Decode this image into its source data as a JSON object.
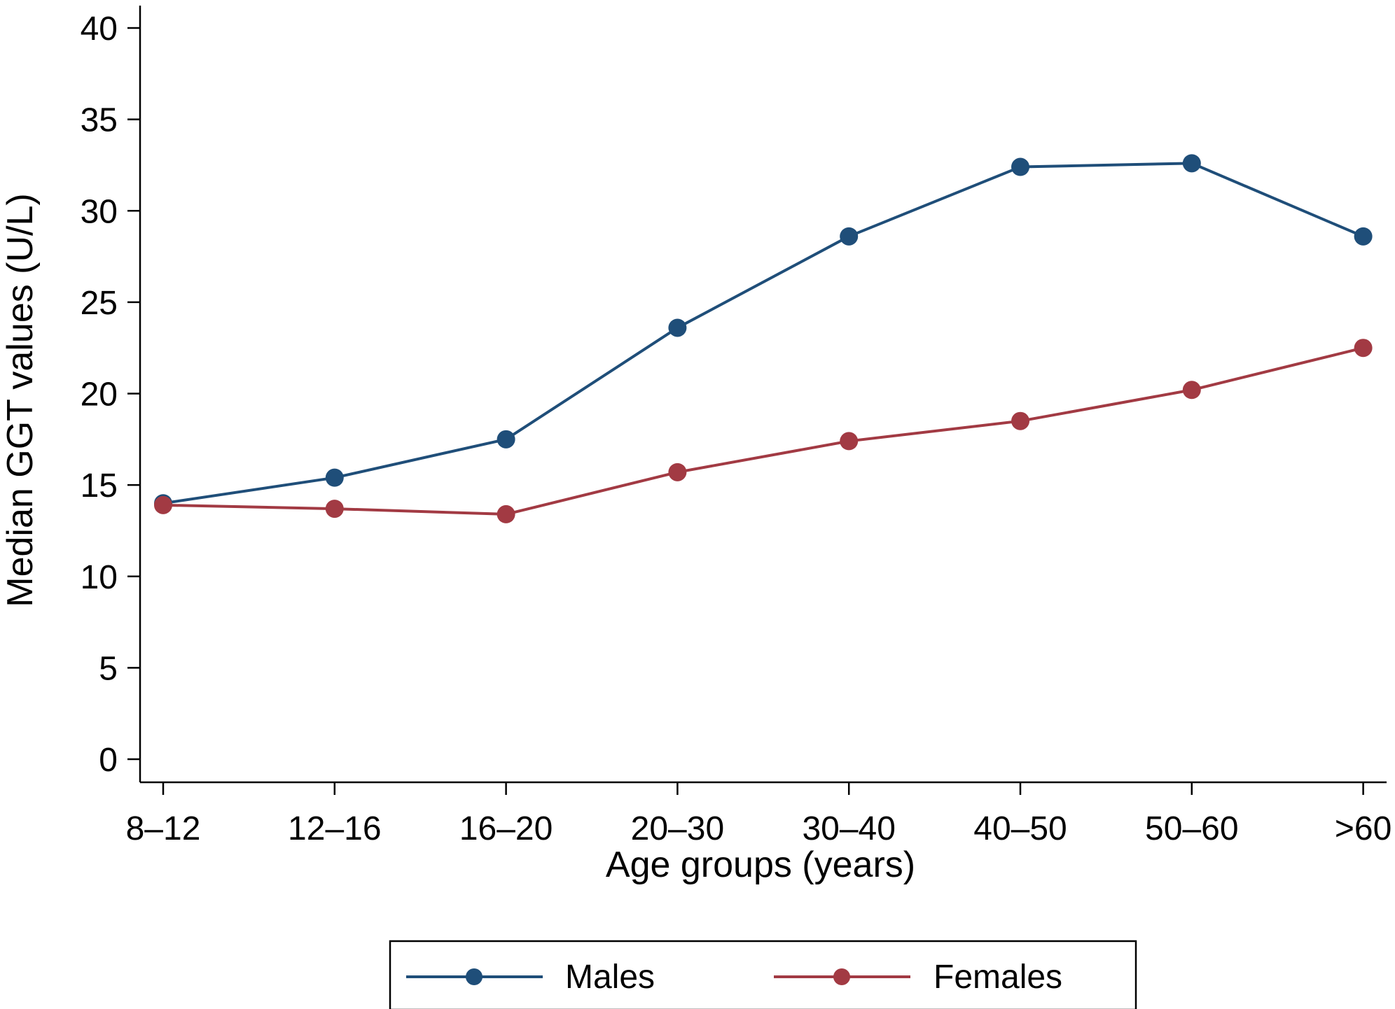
{
  "chart_data": {
    "type": "line",
    "categories": [
      "8–12",
      "12–16",
      "16–20",
      "20–30",
      "30–40",
      "40–50",
      "50–60",
      ">60"
    ],
    "series": [
      {
        "name": "Males",
        "color": "#1f4e79",
        "values": [
          14.0,
          15.4,
          17.5,
          23.6,
          28.6,
          32.4,
          32.6,
          28.6
        ]
      },
      {
        "name": "Females",
        "color": "#a23a43",
        "values": [
          13.9,
          13.7,
          13.4,
          15.7,
          17.4,
          18.5,
          20.2,
          22.5
        ]
      }
    ],
    "xlabel": "Age groups (years)",
    "ylabel": "Median GGT values (U/L)",
    "ylim": [
      0,
      40
    ],
    "yticks": [
      0,
      5,
      10,
      15,
      20,
      25,
      30,
      35,
      40
    ],
    "grid": false,
    "legend_position": "bottom"
  }
}
